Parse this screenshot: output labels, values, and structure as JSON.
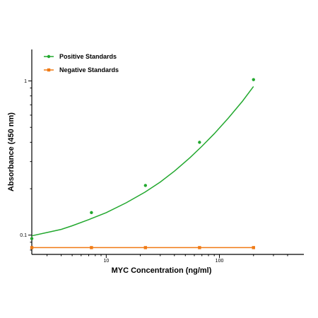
{
  "chart_data": {
    "type": "scatter",
    "xlabel": "MYC Concentration (ng/ml)",
    "ylabel": "Absorbance (450 nm)",
    "xscale": "log",
    "yscale": "log",
    "xlim": [
      2.2,
      430
    ],
    "ylim": [
      0.075,
      1.6
    ],
    "x_ticks": [
      10,
      100
    ],
    "y_ticks": [
      0.1,
      1
    ],
    "x_tick_labels": [
      "10",
      "100"
    ],
    "y_tick_labels": [
      "0.1",
      "1"
    ],
    "legend_position": "top-left",
    "series": [
      {
        "name": "Positive Standards",
        "color": "#22a82e",
        "marker": "circle",
        "x": [
          2.2,
          7.4,
          22.2,
          66.7,
          200
        ],
        "y": [
          0.095,
          0.14,
          0.21,
          0.4,
          1.02
        ],
        "fit": "curve",
        "fit_x": [
          2.2,
          3,
          4,
          5,
          7,
          10,
          15,
          22,
          30,
          40,
          55,
          70,
          90,
          120,
          160,
          200
        ],
        "fit_y": [
          0.099,
          0.104,
          0.109,
          0.115,
          0.126,
          0.14,
          0.162,
          0.19,
          0.221,
          0.26,
          0.318,
          0.377,
          0.455,
          0.575,
          0.74,
          0.92
        ]
      },
      {
        "name": "Negative Standards",
        "color": "#f07a14",
        "marker": "square",
        "x": [
          2.2,
          7.4,
          22.2,
          66.7,
          200
        ],
        "y": [
          0.083,
          0.083,
          0.083,
          0.083,
          0.083
        ],
        "fit": "line"
      }
    ]
  }
}
